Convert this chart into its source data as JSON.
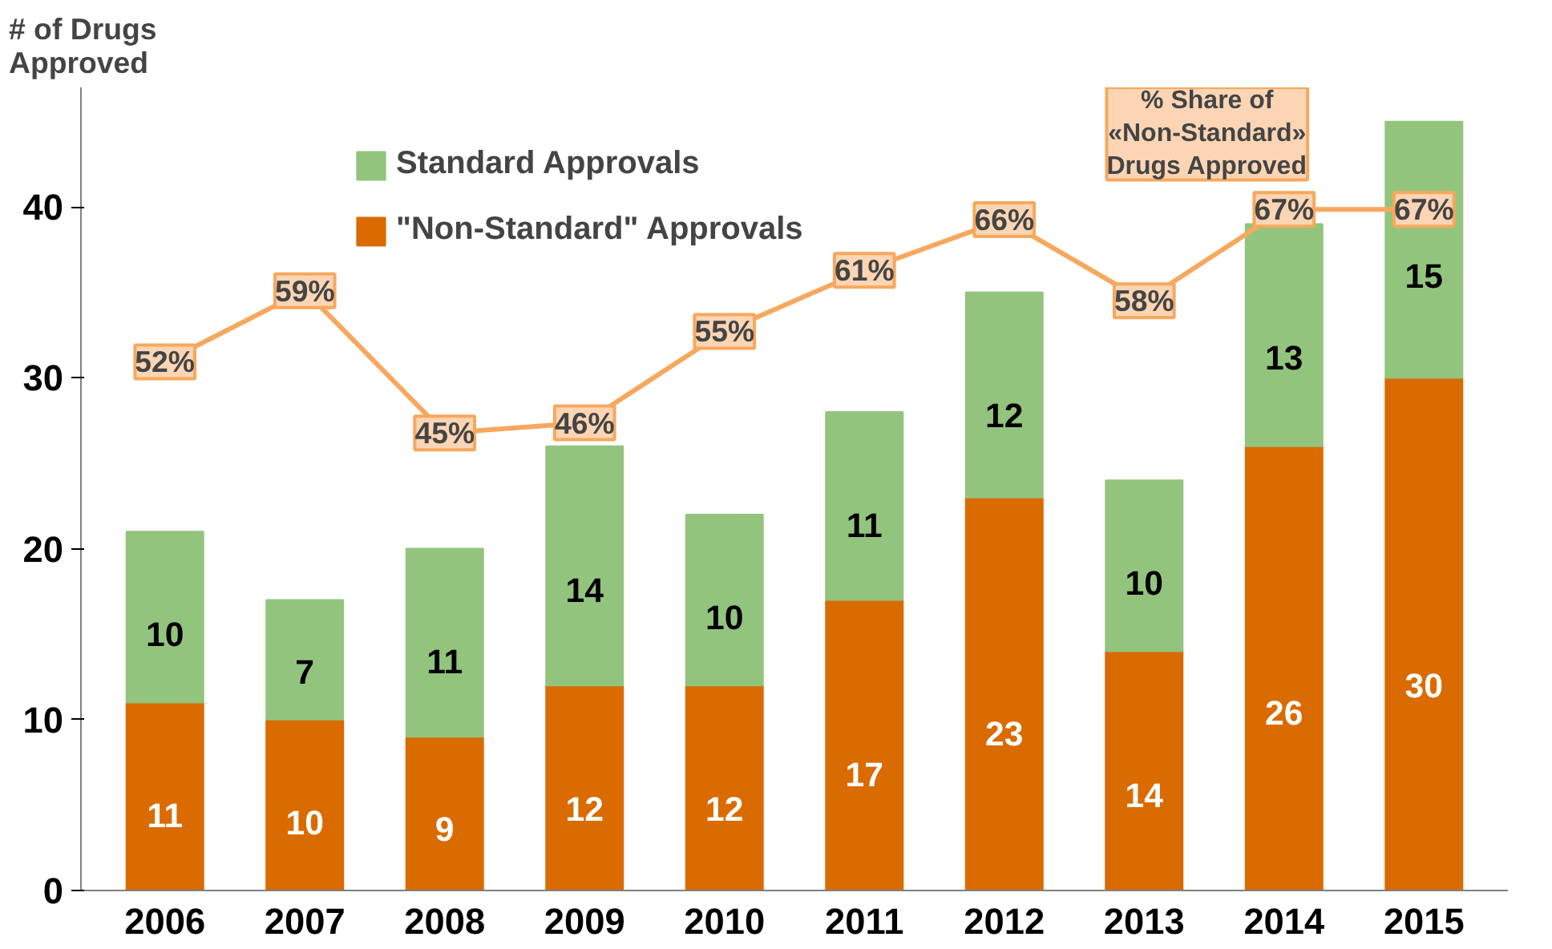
{
  "chart_data": {
    "type": "bar",
    "stacked": true,
    "ylabel": "# of Drugs Approved",
    "categories": [
      "2006",
      "2007",
      "2008",
      "2009",
      "2010",
      "2011",
      "2012",
      "2013",
      "2014",
      "2015"
    ],
    "series": [
      {
        "name": "\"Non-Standard\" Approvals",
        "color": "#d96b00",
        "values": [
          11,
          10,
          9,
          12,
          12,
          17,
          23,
          14,
          26,
          30
        ]
      },
      {
        "name": "Standard Approvals",
        "color": "#93c47d",
        "values": [
          10,
          7,
          11,
          14,
          10,
          11,
          12,
          10,
          13,
          15
        ]
      },
      {
        "name": "% Share of «Non-Standard» Drugs Approved",
        "type": "line",
        "axis": "y2",
        "marker": "square",
        "color": "#f7a85e",
        "values": [
          52,
          59,
          45,
          46,
          55,
          61,
          66,
          58,
          67,
          67
        ],
        "value_labels": [
          "52%",
          "59%",
          "45%",
          "46%",
          "55%",
          "61%",
          "66%",
          "58%",
          "67%",
          "67%"
        ]
      }
    ],
    "ylim": [
      0,
      47
    ],
    "yticks": [
      0,
      10,
      20,
      30,
      40
    ],
    "y2lim": [
      0,
      79
    ],
    "data_labels": true,
    "legend": "top left",
    "grid": false
  }
}
